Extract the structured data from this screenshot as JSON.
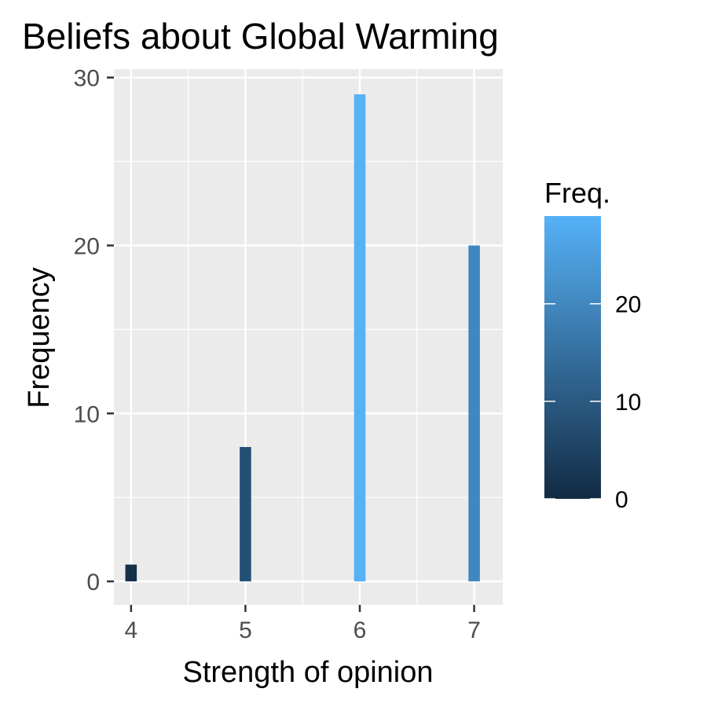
{
  "chart_data": {
    "type": "bar",
    "title": "Beliefs about Global Warming",
    "xlabel": "Strength of opinion",
    "ylabel": "Frequency",
    "x": [
      4,
      5,
      6,
      7
    ],
    "values": [
      1,
      8,
      29,
      20
    ],
    "xlim": [
      3.85,
      7.25
    ],
    "ylim": [
      -1.4,
      30.5
    ],
    "x_ticks": [
      "4",
      "5",
      "6",
      "7"
    ],
    "y_ticks": [
      "0",
      "10",
      "20",
      "30"
    ],
    "grid": true,
    "legend": {
      "title": "Freq.",
      "position": "right",
      "type": "colorbar",
      "range": [
        0,
        29
      ],
      "ticks": [
        "0",
        "10",
        "20"
      ],
      "color_low": "#132B43",
      "color_high": "#56B1F7"
    },
    "colors": {
      "panel": "#EBEBEB",
      "grid": "#FFFFFF"
    }
  }
}
